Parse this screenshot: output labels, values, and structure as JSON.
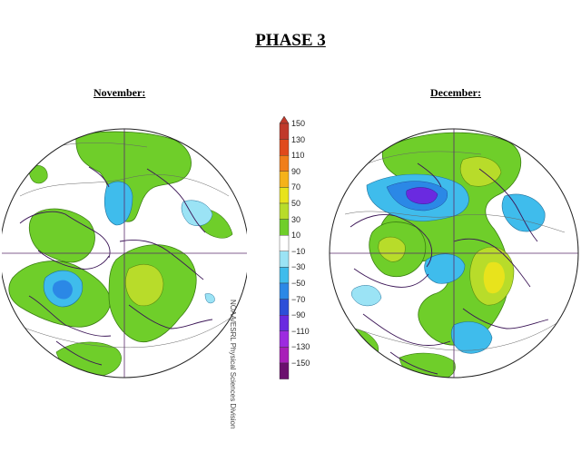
{
  "title": "PHASE 3",
  "maps": [
    {
      "label": "November:"
    },
    {
      "label": "December:"
    }
  ],
  "colorbar": {
    "labels": [
      "150",
      "130",
      "110",
      "90",
      "70",
      "50",
      "30",
      "10",
      "−10",
      "−30",
      "−50",
      "−70",
      "−90",
      "−110",
      "−130",
      "−150"
    ],
    "colors": {
      "150": "#c0392b",
      "130": "#e04a1c",
      "110": "#f07e1a",
      "90": "#f5b21a",
      "70": "#e8e31c",
      "50": "#b8dc2a",
      "30": "#6fce2a",
      "10": "#ffffff",
      "-10": "#9be3f5",
      "-30": "#3fbcec",
      "-50": "#2b88e6",
      "-70": "#2d4fd8",
      "-90": "#6a2ae0",
      "-110": "#9d2be0",
      "-130": "#a81fb8",
      "-150": "#6b0f6e"
    }
  },
  "credit": "NOAA/ESRL Physical Sciences Division"
}
